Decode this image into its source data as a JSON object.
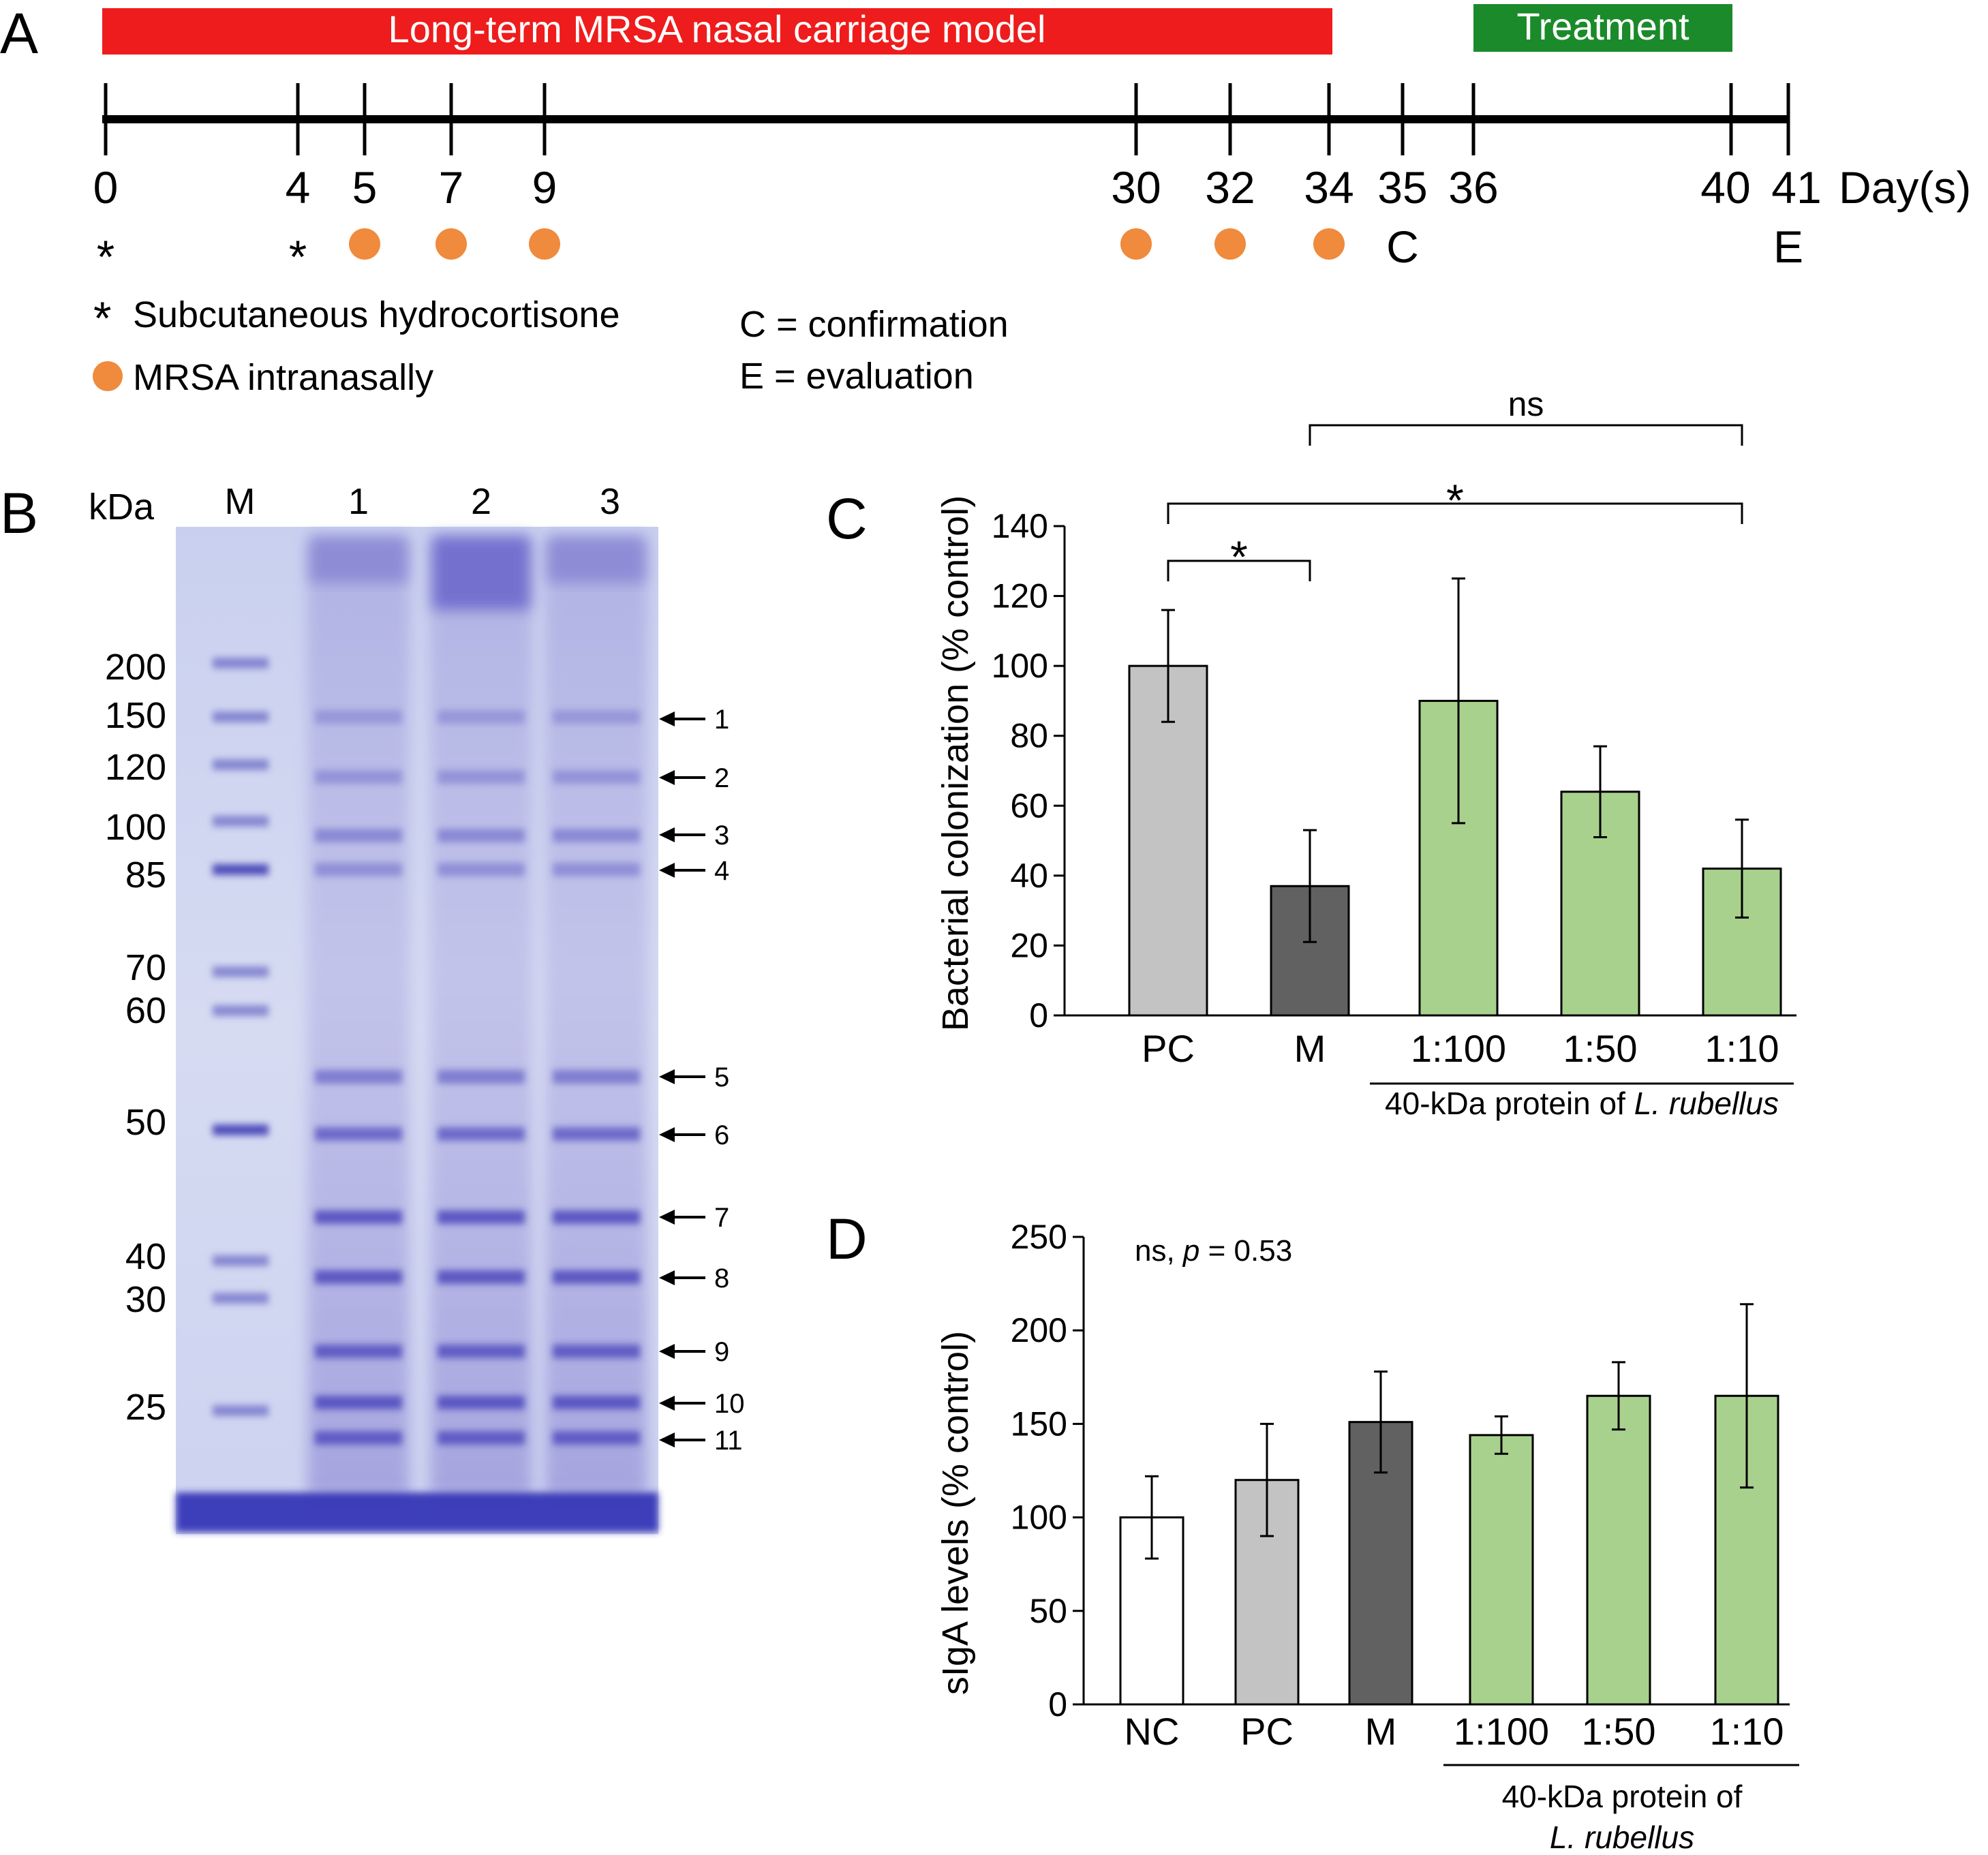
{
  "panels": {
    "A": {
      "letter": "A",
      "model_label": "Long-term MRSA nasal carriage model",
      "treatment_label": "Treatment",
      "days": [
        "0",
        "4",
        "5",
        "7",
        "9",
        "30",
        "32",
        "34",
        "35",
        "36",
        "40",
        "41"
      ],
      "days_unit": "Day(s)",
      "markers": {
        "hydrocortisone_days": [
          "0",
          "4"
        ],
        "mrsa_days": [
          "5",
          "7",
          "9",
          "30",
          "32",
          "34"
        ],
        "confirmation_day": "35",
        "evaluation_day": "41",
        "confirmation_letter": "C",
        "evaluation_letter": "E"
      },
      "legend": {
        "asterisk_symbol": "*",
        "hydrocortisone": "Subcutaneous hydrocortisone",
        "mrsa": "MRSA intranasally",
        "confirmation": "C = confirmation",
        "evaluation": "E = evaluation"
      },
      "colors": {
        "model_bar": "#ee1c1c",
        "treatment_bar": "#1b8a2a",
        "dot": "#f08a3c"
      }
    },
    "B": {
      "letter": "B",
      "unit_label": "kDa",
      "lane_labels": [
        "M",
        "1",
        "2",
        "3"
      ],
      "marker_sizes": [
        "200",
        "150",
        "120",
        "100",
        "85",
        "70",
        "60",
        "50",
        "40",
        "30",
        "25"
      ],
      "band_labels": [
        "1",
        "2",
        "3",
        "4",
        "5",
        "6",
        "7",
        "8",
        "9",
        "10",
        "11"
      ]
    },
    "C": {
      "letter": "C"
    },
    "D": {
      "letter": "D"
    }
  },
  "chart_data": [
    {
      "panel": "C",
      "type": "bar",
      "categories": [
        "PC",
        "M",
        "1:100",
        "1:50",
        "1:10"
      ],
      "values": [
        100,
        37,
        90,
        64,
        42
      ],
      "errors": [
        16,
        16,
        35,
        13,
        14
      ],
      "colors": [
        "#c3c3c3",
        "#616161",
        "#a9d18e",
        "#a9d18e",
        "#a9d18e"
      ],
      "ylabel": "Bacterial colonization (% control)",
      "ylim": [
        0,
        140
      ],
      "yticks": [
        "0",
        "20",
        "40",
        "60",
        "80",
        "100",
        "120",
        "140"
      ],
      "group_label_prefix": "40-kDa protein of ",
      "group_label_italic": "L. rubellus",
      "annotations": [
        {
          "text": "*",
          "from": "PC",
          "to": "M"
        },
        {
          "text": "*",
          "from": "PC",
          "to": "1:10"
        },
        {
          "text": "ns",
          "from": "M",
          "to": "1:10"
        }
      ],
      "grid": false
    },
    {
      "panel": "D",
      "type": "bar",
      "categories": [
        "NC",
        "PC",
        "M",
        "1:100",
        "1:50",
        "1:10"
      ],
      "values": [
        100,
        120,
        151,
        144,
        165,
        165
      ],
      "errors": [
        22,
        30,
        27,
        10,
        18,
        49
      ],
      "colors": [
        "#ffffff",
        "#c3c3c3",
        "#616161",
        "#a9d18e",
        "#a9d18e",
        "#a9d18e"
      ],
      "ylabel": "sIgA levels (% control)",
      "ylim": [
        0,
        250
      ],
      "yticks": [
        "0",
        "50",
        "100",
        "150",
        "200",
        "250"
      ],
      "stat_prefix": "ns, ",
      "stat_p": "p",
      "stat_value": " = 0.53",
      "group_label_line1": "40-kDa protein of",
      "group_label_line2": "L. rubellus",
      "grid": false
    }
  ]
}
